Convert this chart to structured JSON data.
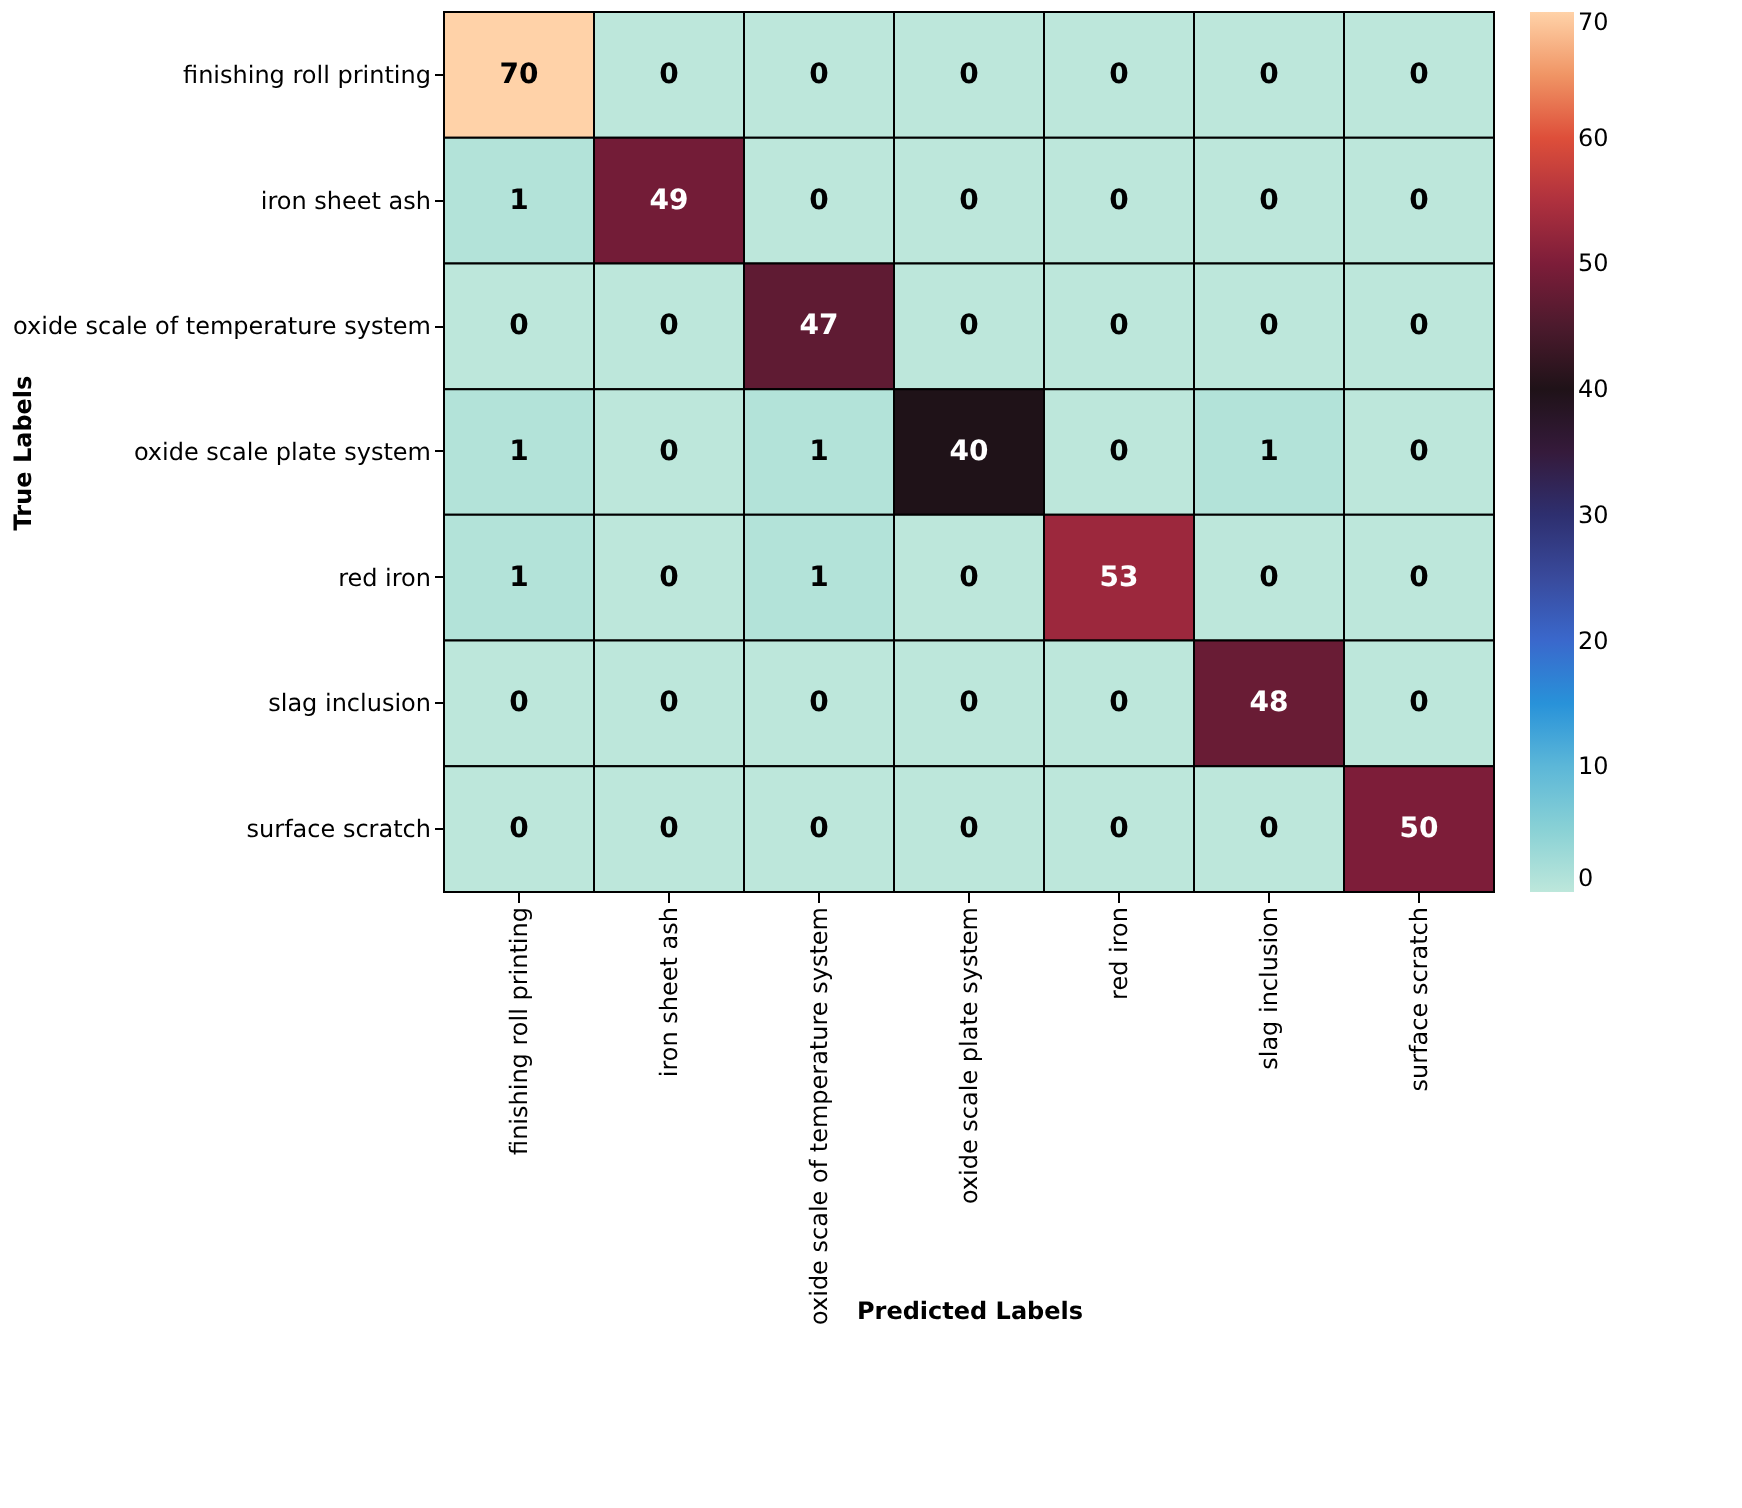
{
  "chart_data": {
    "type": "heatmap",
    "xlabel": "Predicted Labels",
    "ylabel": "True Labels",
    "categories": [
      "finishing roll printing",
      "iron sheet ash",
      "oxide scale of temperature system",
      "oxide scale plate system",
      "red iron",
      "slag inclusion",
      "surface scratch"
    ],
    "y_categories": [
      "finishing roll printing",
      "iron sheet ash",
      "oxide scale of temperature system",
      "oxide scale plate system",
      "red iron",
      "slag inclusion",
      "surface scratch"
    ],
    "cells": [
      [
        70,
        0,
        0,
        0,
        0,
        0,
        0
      ],
      [
        1,
        49,
        0,
        0,
        0,
        0,
        0
      ],
      [
        0,
        0,
        47,
        0,
        0,
        0,
        0
      ],
      [
        1,
        0,
        1,
        40,
        0,
        1,
        0
      ],
      [
        1,
        0,
        1,
        0,
        53,
        0,
        0
      ],
      [
        0,
        0,
        0,
        0,
        0,
        48,
        0
      ],
      [
        0,
        0,
        0,
        0,
        0,
        0,
        50
      ]
    ],
    "clim": [
      0,
      70
    ],
    "cticks": [
      0,
      10,
      20,
      30,
      40,
      50,
      60,
      70
    ],
    "data_labels": true
  }
}
